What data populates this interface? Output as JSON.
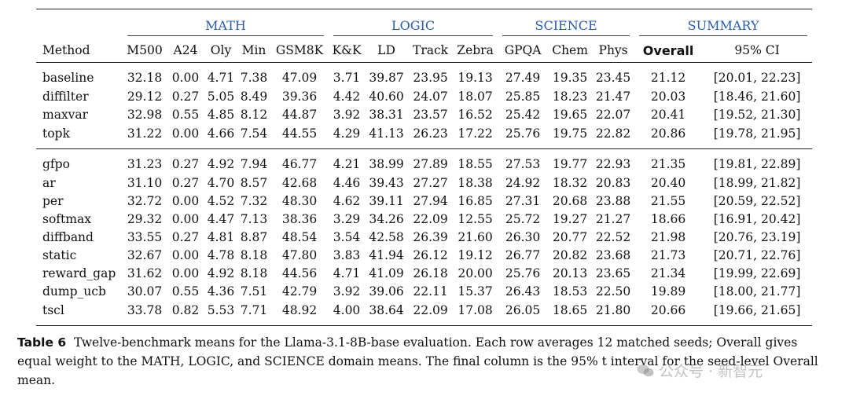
{
  "table": {
    "groups": [
      {
        "label": "MATH",
        "span": 5
      },
      {
        "label": "LOGIC",
        "span": 4
      },
      {
        "label": "SCIENCE",
        "span": 3
      },
      {
        "label": "SUMMARY",
        "span": 2
      }
    ],
    "headers": [
      "Method",
      "M500",
      "A24",
      "Oly",
      "Min",
      "GSM8K",
      "K&K",
      "LD",
      "Track",
      "Zebra",
      "GPQA",
      "Chem",
      "Phys",
      "Overall",
      "95% CI"
    ],
    "block1": [
      [
        "baseline",
        "32.18",
        "0.00",
        "4.71",
        "7.38",
        "47.09",
        "3.71",
        "39.87",
        "23.95",
        "19.13",
        "27.49",
        "19.35",
        "23.45",
        "21.12",
        "[20.01, 22.23]"
      ],
      [
        "diffilter",
        "29.12",
        "0.27",
        "5.05",
        "8.49",
        "39.36",
        "4.42",
        "40.60",
        "24.07",
        "18.07",
        "25.85",
        "18.23",
        "21.47",
        "20.03",
        "[18.46, 21.60]"
      ],
      [
        "maxvar",
        "32.98",
        "0.55",
        "4.85",
        "8.12",
        "44.87",
        "3.92",
        "38.31",
        "23.57",
        "16.52",
        "25.42",
        "19.65",
        "22.07",
        "20.41",
        "[19.52, 21.30]"
      ],
      [
        "topk",
        "31.22",
        "0.00",
        "4.66",
        "7.54",
        "44.55",
        "4.29",
        "41.13",
        "26.23",
        "17.22",
        "25.76",
        "19.75",
        "22.82",
        "20.86",
        "[19.78, 21.95]"
      ]
    ],
    "block2": [
      [
        "gfpo",
        "31.23",
        "0.27",
        "4.92",
        "7.94",
        "46.77",
        "4.21",
        "38.99",
        "27.89",
        "18.55",
        "27.53",
        "19.77",
        "22.93",
        "21.35",
        "[19.81, 22.89]"
      ],
      [
        "ar",
        "31.10",
        "0.27",
        "4.70",
        "8.57",
        "42.68",
        "4.46",
        "39.43",
        "27.27",
        "18.38",
        "24.92",
        "18.32",
        "20.83",
        "20.40",
        "[18.99, 21.82]"
      ],
      [
        "per",
        "32.72",
        "0.00",
        "4.52",
        "7.32",
        "48.30",
        "4.62",
        "39.11",
        "27.94",
        "16.85",
        "27.31",
        "20.68",
        "23.88",
        "21.55",
        "[20.59, 22.52]"
      ],
      [
        "softmax",
        "29.32",
        "0.00",
        "4.47",
        "7.13",
        "38.36",
        "3.29",
        "34.26",
        "22.09",
        "12.55",
        "25.72",
        "19.27",
        "21.27",
        "18.66",
        "[16.91, 20.42]"
      ],
      [
        "diffband",
        "33.55",
        "0.27",
        "4.81",
        "8.87",
        "48.54",
        "3.54",
        "42.58",
        "26.39",
        "21.60",
        "26.30",
        "20.77",
        "22.52",
        "21.98",
        "[20.76, 23.19]"
      ],
      [
        "static",
        "32.67",
        "0.00",
        "4.78",
        "8.18",
        "47.80",
        "3.83",
        "41.94",
        "26.12",
        "19.12",
        "26.77",
        "20.82",
        "23.68",
        "21.73",
        "[20.71, 22.76]"
      ],
      [
        "reward_gap",
        "31.62",
        "0.00",
        "4.92",
        "8.18",
        "44.56",
        "4.71",
        "41.09",
        "26.18",
        "20.00",
        "25.76",
        "20.13",
        "23.65",
        "21.34",
        "[19.99, 22.69]"
      ],
      [
        "dump_ucb",
        "30.07",
        "0.55",
        "4.36",
        "7.51",
        "42.79",
        "3.92",
        "39.06",
        "22.11",
        "15.37",
        "26.43",
        "18.53",
        "22.50",
        "19.89",
        "[18.00, 21.77]"
      ],
      [
        "tscl",
        "33.78",
        "0.82",
        "5.53",
        "7.71",
        "48.92",
        "4.00",
        "38.64",
        "22.09",
        "17.08",
        "26.05",
        "18.65",
        "21.80",
        "20.66",
        "[19.66, 21.65]"
      ]
    ]
  },
  "caption": {
    "label": "Table 6",
    "text": "Twelve-benchmark means for the Llama-3.1-8B-base evaluation. Each row averages 12 matched seeds; Overall gives equal weight to the MATH, LOGIC, and SCIENCE domain means. The final column is the 95% t interval for the seed-level Overall mean."
  },
  "watermark": {
    "text": "公众号 · 新智元",
    "color": "#8a8a8a"
  }
}
